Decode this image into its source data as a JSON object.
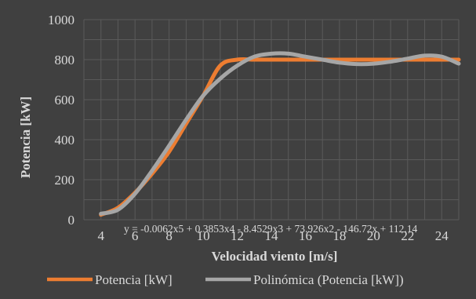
{
  "chart_data": {
    "type": "line",
    "title": "",
    "xlabel": "Velocidad viento [m/s]",
    "ylabel": "Potencia [kW]",
    "xlim": [
      3,
      25
    ],
    "ylim": [
      0,
      1000
    ],
    "x_ticks": [
      4,
      6,
      8,
      10,
      12,
      14,
      16,
      18,
      20,
      22,
      24
    ],
    "y_ticks": [
      0,
      200,
      400,
      600,
      800,
      1000
    ],
    "grid": true,
    "legend": "bottom",
    "series": [
      {
        "name": "Potencia [kW]",
        "color": "#ED7D31",
        "x": [
          4,
          5,
          6,
          7,
          8,
          9,
          10,
          11,
          12,
          13,
          14,
          15,
          16,
          17,
          18,
          19,
          20,
          21,
          22,
          23,
          24,
          25
        ],
        "values": [
          25,
          60,
          135,
          230,
          340,
          480,
          620,
          770,
          800,
          800,
          800,
          800,
          800,
          800,
          800,
          800,
          800,
          800,
          800,
          800,
          800,
          800
        ]
      },
      {
        "name": "Polinómica (Potencia [kW])",
        "color": "#A6A6A6",
        "x": [
          4,
          5,
          6,
          7,
          8,
          9,
          10,
          11,
          12,
          13,
          14,
          15,
          16,
          17,
          18,
          19,
          20,
          21,
          22,
          23,
          24,
          25
        ],
        "values": [
          30,
          50,
          130,
          245,
          370,
          500,
          620,
          705,
          770,
          815,
          830,
          830,
          815,
          800,
          785,
          778,
          780,
          790,
          805,
          820,
          815,
          780
        ]
      }
    ],
    "annotation": "y = -0.0062x5 + 0.3853x4 - 8.4529x3 + 73.926x2 - 146.72x + 112.14"
  }
}
